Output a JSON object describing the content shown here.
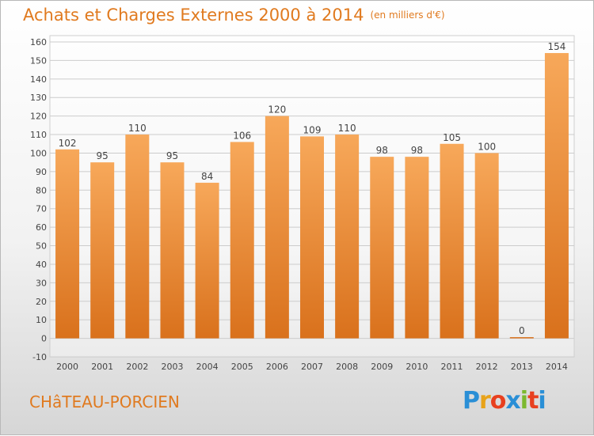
{
  "header": {
    "title": "Achats et Charges Externes 2000 à 2014",
    "subtitle": "(en milliers d'€)"
  },
  "footer": {
    "city": "CHâTEAU-PORCIEN",
    "logo_letters": [
      "P",
      "r",
      "o",
      "x",
      "i",
      "t",
      "i"
    ],
    "logo_colors": [
      "#2a8fd6",
      "#e8a31a",
      "#e8401f",
      "#2a8fd6",
      "#7cb82f",
      "#e8401f",
      "#2a8fd6"
    ]
  },
  "chart_data": {
    "type": "bar",
    "categories": [
      "2000",
      "2001",
      "2002",
      "2003",
      "2004",
      "2005",
      "2006",
      "2007",
      "2008",
      "2009",
      "2010",
      "2011",
      "2012",
      "2013",
      "2014"
    ],
    "values": [
      102,
      95,
      110,
      95,
      84,
      106,
      120,
      109,
      110,
      98,
      98,
      105,
      100,
      0,
      154
    ],
    "data_labels": [
      "102",
      "95",
      "110",
      "95",
      "84",
      "106",
      "120",
      "109",
      "110",
      "98",
      "98",
      "105",
      "100",
      "0",
      "154"
    ],
    "title": "Achats et Charges Externes 2000 à 2014",
    "subtitle": "(en milliers d'€)",
    "ylim": [
      -10,
      160
    ],
    "yticks": [
      -10,
      0,
      10,
      20,
      30,
      40,
      50,
      60,
      70,
      80,
      90,
      100,
      110,
      120,
      130,
      140,
      150,
      160
    ],
    "ytick_labels": [
      "-10",
      "0",
      "10",
      "20",
      "30",
      "40",
      "50",
      "60",
      "70",
      "80",
      "90",
      "100",
      "110",
      "120",
      "130",
      "140",
      "150",
      "160"
    ],
    "grid": true,
    "legend": "none",
    "colors": {
      "bar_top": "#f7a85a",
      "bar_bottom": "#d9711c",
      "grid": "#cccccc",
      "text": "#444444"
    }
  }
}
